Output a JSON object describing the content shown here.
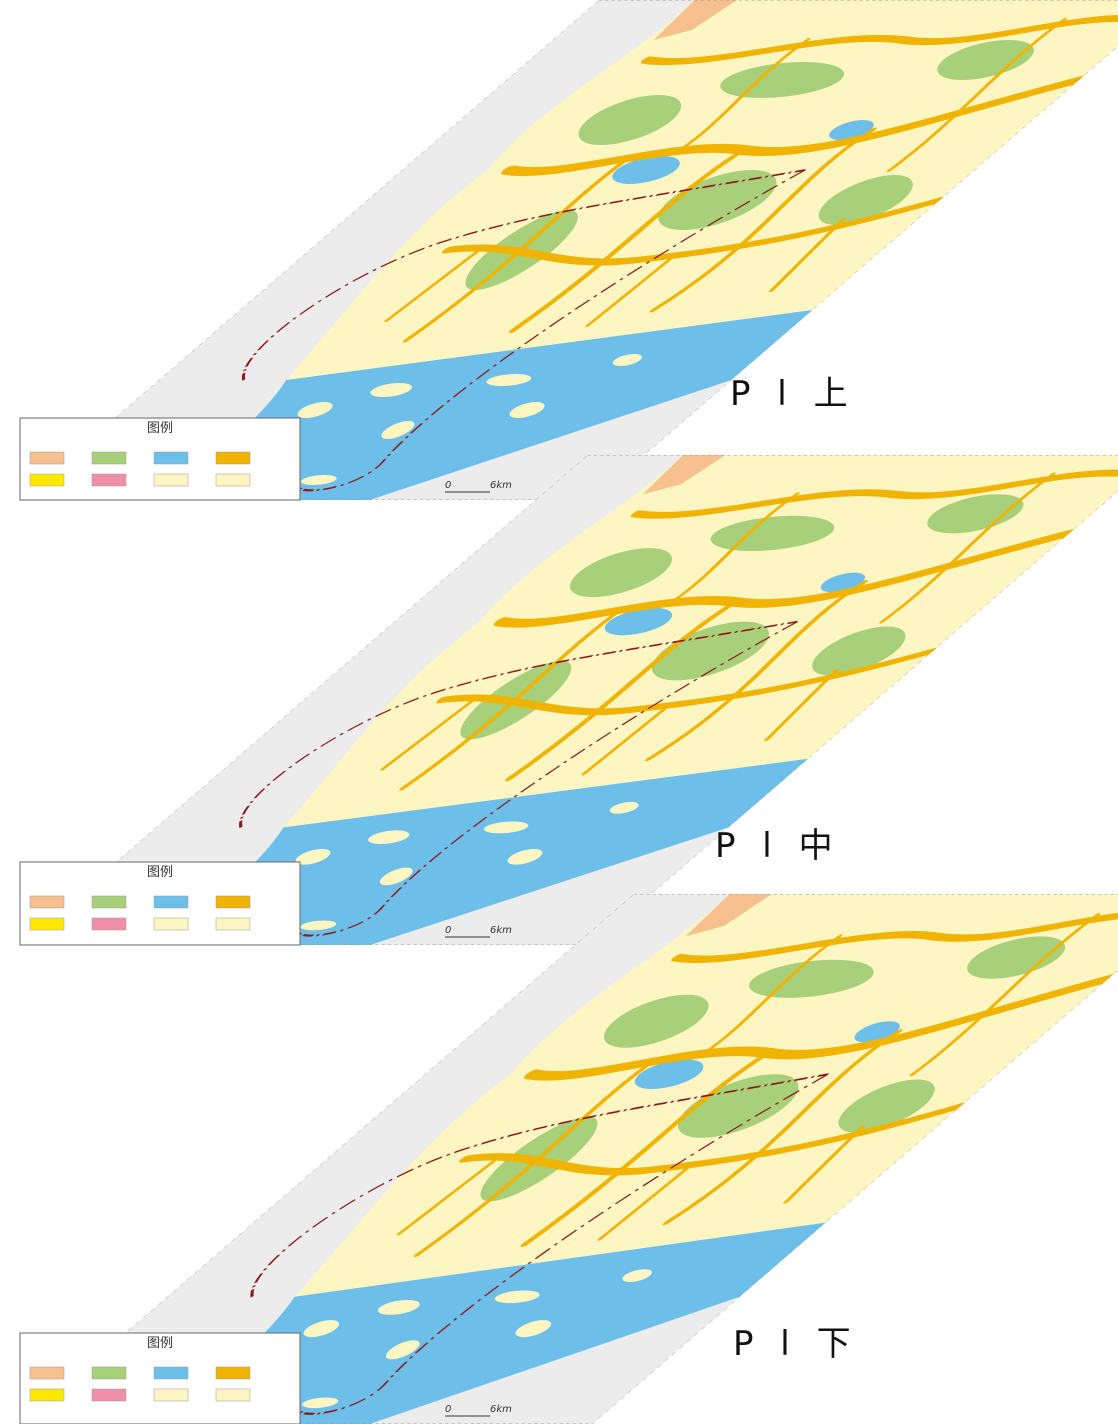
{
  "panels": [
    {
      "label": "P l 上",
      "legend": {
        "title": "图例"
      },
      "scale": {
        "start": "0",
        "end": "6km"
      }
    },
    {
      "label": "P l 中",
      "legend": {
        "title": "图例"
      },
      "scale": {
        "start": "0",
        "end": "6km"
      }
    },
    {
      "label": "P l 下",
      "legend": {
        "title": "图例"
      },
      "scale": {
        "start": "0",
        "end": "6km"
      }
    }
  ]
}
